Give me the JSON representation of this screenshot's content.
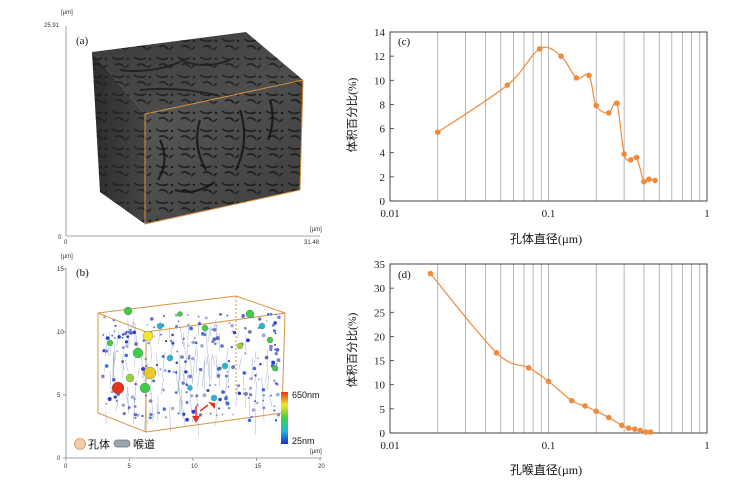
{
  "panel_a": {
    "label": "(a)",
    "y_unit": "[µm]",
    "x_unit": "[µm]",
    "y_top": "25.91",
    "y_zero": "0",
    "x_zero": "0",
    "x_end": "31.48"
  },
  "panel_b": {
    "label": "(b)",
    "y_unit": "[µm]",
    "x_unit": "[µm]",
    "y_ticks": [
      "0",
      "5",
      "10",
      "15"
    ],
    "x_ticks": [
      "0",
      "5",
      "10",
      "15",
      "20"
    ],
    "colorbar_max": "650nm",
    "colorbar_min": "25nm",
    "legend_pore": "孔体",
    "legend_throat": "喉道",
    "colors": {
      "pore": "#f3c9a6",
      "throat": "#9aa4ad"
    }
  },
  "chart_data": [
    {
      "type": "line",
      "label": "(c)",
      "xlabel": "孔体直径(µm)",
      "ylabel": "体积百分比(%)",
      "xscale": "log",
      "xlim": [
        0.01,
        1
      ],
      "ylim": [
        0,
        14
      ],
      "x_tick_labels": [
        "0.01",
        "0.1",
        "1"
      ],
      "y_tick_labels": [
        "0",
        "2",
        "4",
        "6",
        "8",
        "10",
        "12",
        "14"
      ],
      "y_ticks": [
        0,
        2,
        4,
        6,
        8,
        10,
        12,
        14
      ],
      "vgrid": [
        0.02,
        0.03,
        0.04,
        0.05,
        0.06,
        0.07,
        0.08,
        0.09,
        0.1,
        0.2,
        0.3,
        0.4,
        0.5,
        0.6,
        0.7,
        0.8,
        0.9
      ],
      "color": "#f08a3c",
      "x": [
        0.02,
        0.055,
        0.088,
        0.12,
        0.15,
        0.18,
        0.2,
        0.24,
        0.27,
        0.3,
        0.33,
        0.36,
        0.4,
        0.43,
        0.47
      ],
      "y": [
        5.7,
        9.6,
        12.6,
        12.0,
        10.2,
        10.4,
        7.9,
        7.3,
        8.1,
        3.9,
        3.4,
        3.6,
        1.6,
        1.8,
        1.7
      ]
    },
    {
      "type": "line",
      "label": "(d)",
      "xlabel": "孔喉直径(µm)",
      "ylabel": "体积百分比(%)",
      "xscale": "log",
      "xlim": [
        0.01,
        1
      ],
      "ylim": [
        0,
        35
      ],
      "x_tick_labels": [
        "0.01",
        "0.1",
        "1"
      ],
      "y_tick_labels": [
        "0",
        "5",
        "10",
        "15",
        "20",
        "25",
        "30",
        "35"
      ],
      "y_ticks": [
        0,
        5,
        10,
        15,
        20,
        25,
        30,
        35
      ],
      "vgrid": [
        0.02,
        0.03,
        0.04,
        0.05,
        0.06,
        0.07,
        0.08,
        0.09,
        0.1,
        0.2,
        0.3,
        0.4,
        0.5,
        0.6,
        0.7,
        0.8,
        0.9
      ],
      "color": "#f08a3c",
      "x": [
        0.018,
        0.047,
        0.075,
        0.1,
        0.14,
        0.17,
        0.2,
        0.24,
        0.29,
        0.32,
        0.35,
        0.38,
        0.41,
        0.44
      ],
      "y": [
        33,
        16.6,
        13.5,
        10.7,
        6.7,
        5.6,
        4.5,
        3.2,
        1.6,
        1.0,
        0.8,
        0.5,
        0.2,
        0.2
      ]
    }
  ]
}
